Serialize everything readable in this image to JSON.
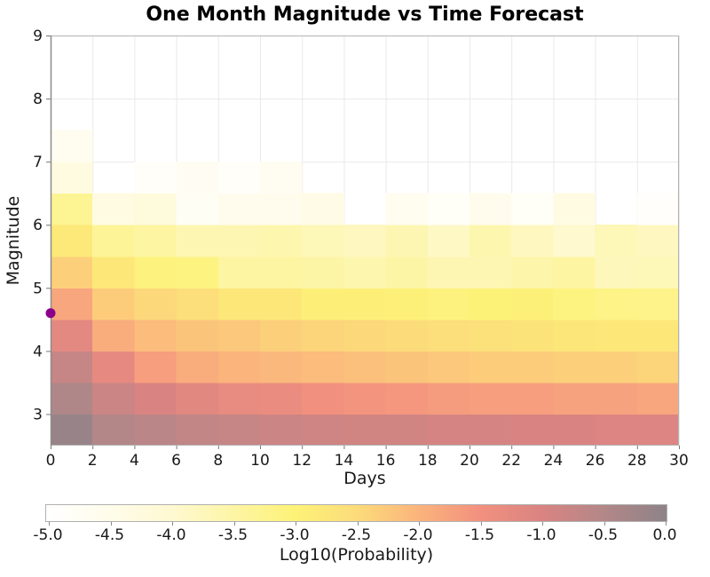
{
  "title": "One Month Magnitude vs Time Forecast",
  "colors": {
    "background": "#ffffff",
    "gridline": "#e9e9e9",
    "frame": "#b3b3b3",
    "spine": "#8c8c8c",
    "tick": "#777777",
    "text": "#191919",
    "marker": "#8B008B"
  },
  "chart_data": {
    "type": "heatmap",
    "title": "One Month Magnitude vs Time Forecast",
    "xlabel": "Days",
    "ylabel": "Magnitude",
    "xlim": [
      0,
      30
    ],
    "ylim": [
      2.5,
      9
    ],
    "grid": true,
    "x_ticks": [
      0,
      2,
      4,
      6,
      8,
      10,
      12,
      14,
      16,
      18,
      20,
      22,
      24,
      26,
      28,
      30
    ],
    "y_ticks": [
      3,
      4,
      5,
      6,
      7,
      8,
      9
    ],
    "day_bin_edges": [
      0,
      2,
      4,
      6,
      8,
      10,
      12,
      14,
      16,
      18,
      20,
      22,
      24,
      26,
      28,
      30
    ],
    "magnitude_bin_edges": [
      2.5,
      3.0,
      3.5,
      4.0,
      4.5,
      5.0,
      5.5,
      6.0,
      6.5,
      7.0,
      7.5,
      8.0,
      8.5,
      9.0
    ],
    "rows_order": "bottom_to_top (magnitude 2.5-3.0 first)",
    "values_log10_probability": [
      [
        -0.15,
        -0.5,
        -0.6,
        -0.7,
        -0.75,
        -0.8,
        -0.85,
        -0.9,
        -0.9,
        -0.95,
        -0.95,
        -1.0,
        -1.0,
        -1.05,
        -1.05
      ],
      [
        -0.45,
        -0.8,
        -1.0,
        -1.15,
        -1.3,
        -1.35,
        -1.5,
        -1.55,
        -1.6,
        -1.65,
        -1.7,
        -1.7,
        -1.75,
        -1.75,
        -1.8
      ],
      [
        -0.75,
        -1.25,
        -1.7,
        -1.9,
        -2.0,
        -2.05,
        -2.1,
        -2.15,
        -2.2,
        -2.25,
        -2.3,
        -2.3,
        -2.35,
        -2.35,
        -2.4
      ],
      [
        -1.2,
        -1.9,
        -2.1,
        -2.2,
        -2.25,
        -2.35,
        -2.4,
        -2.45,
        -2.5,
        -2.55,
        -2.6,
        -2.65,
        -2.7,
        -2.75,
        -2.75
      ],
      [
        -1.8,
        -2.3,
        -2.45,
        -2.55,
        -2.75,
        -2.75,
        -2.9,
        -2.9,
        -2.95,
        -3.05,
        -3.0,
        -2.95,
        -3.1,
        -3.15,
        -3.2
      ],
      [
        -2.35,
        -2.75,
        -3.05,
        -3.1,
        -3.45,
        -3.45,
        -3.5,
        -3.6,
        -3.5,
        -3.65,
        -3.65,
        -3.55,
        -3.45,
        -3.75,
        -3.7
      ],
      [
        -2.8,
        -3.35,
        -3.45,
        -3.65,
        -3.65,
        -3.6,
        -3.7,
        -3.8,
        -3.65,
        -3.85,
        -3.6,
        -3.8,
        -3.95,
        -3.7,
        -3.8
      ],
      [
        -3.3,
        -4.35,
        -4.2,
        -4.75,
        -4.55,
        -4.55,
        -4.4,
        -5,
        -4.6,
        -4.8,
        -4.55,
        -4.8,
        -4.35,
        -5,
        -4.9
      ],
      [
        -4.3,
        -5,
        -4.85,
        -4.7,
        -4.85,
        -4.65,
        -5,
        -5,
        -5,
        -5,
        -5,
        -5,
        -5,
        -5,
        -5
      ],
      [
        -4.6,
        -5,
        -5,
        -5,
        -5,
        -5,
        -5,
        -5,
        -5,
        -5,
        -5,
        -5,
        -5,
        -5,
        -5
      ],
      [
        -5,
        -5,
        -5,
        -5,
        -5,
        -5,
        -5,
        -5,
        -5,
        -5,
        -5,
        -5,
        -5,
        -5,
        -5
      ],
      [
        -5,
        -5,
        -5,
        -5,
        -5,
        -5,
        -5,
        -5,
        -5,
        -5,
        -5,
        -5,
        -5,
        -5,
        -5
      ],
      [
        -5,
        -5,
        -5,
        -5,
        -5,
        -5,
        -5,
        -5,
        -5,
        -5,
        -5,
        -5,
        -5,
        -5,
        -5
      ]
    ],
    "marker": {
      "day": 0,
      "magnitude": 4.6,
      "color": "#8B008B"
    },
    "colorbar": {
      "label": "Log10(Probability)",
      "range": [
        -5,
        0
      ],
      "tick_labels": [
        "-5.0",
        "-4.5",
        "-4.0",
        "-3.5",
        "-3.0",
        "-2.5",
        "-2.0",
        "-1.5",
        "-1.0",
        "-0.5",
        "0.0"
      ],
      "position": "bottom",
      "color_stops": [
        [
          -5.0,
          "#ffffff"
        ],
        [
          -4.5,
          "#fffceb"
        ],
        [
          -4.0,
          "#fef9d2"
        ],
        [
          -3.5,
          "#fdf5a6"
        ],
        [
          -3.0,
          "#fdf278"
        ],
        [
          -2.5,
          "#fcdc7a"
        ],
        [
          -2.0,
          "#fbb47c"
        ],
        [
          -1.5,
          "#f2907f"
        ],
        [
          -1.0,
          "#d98482"
        ],
        [
          -0.5,
          "#b38788"
        ],
        [
          0.0,
          "#8d8388"
        ]
      ]
    }
  }
}
